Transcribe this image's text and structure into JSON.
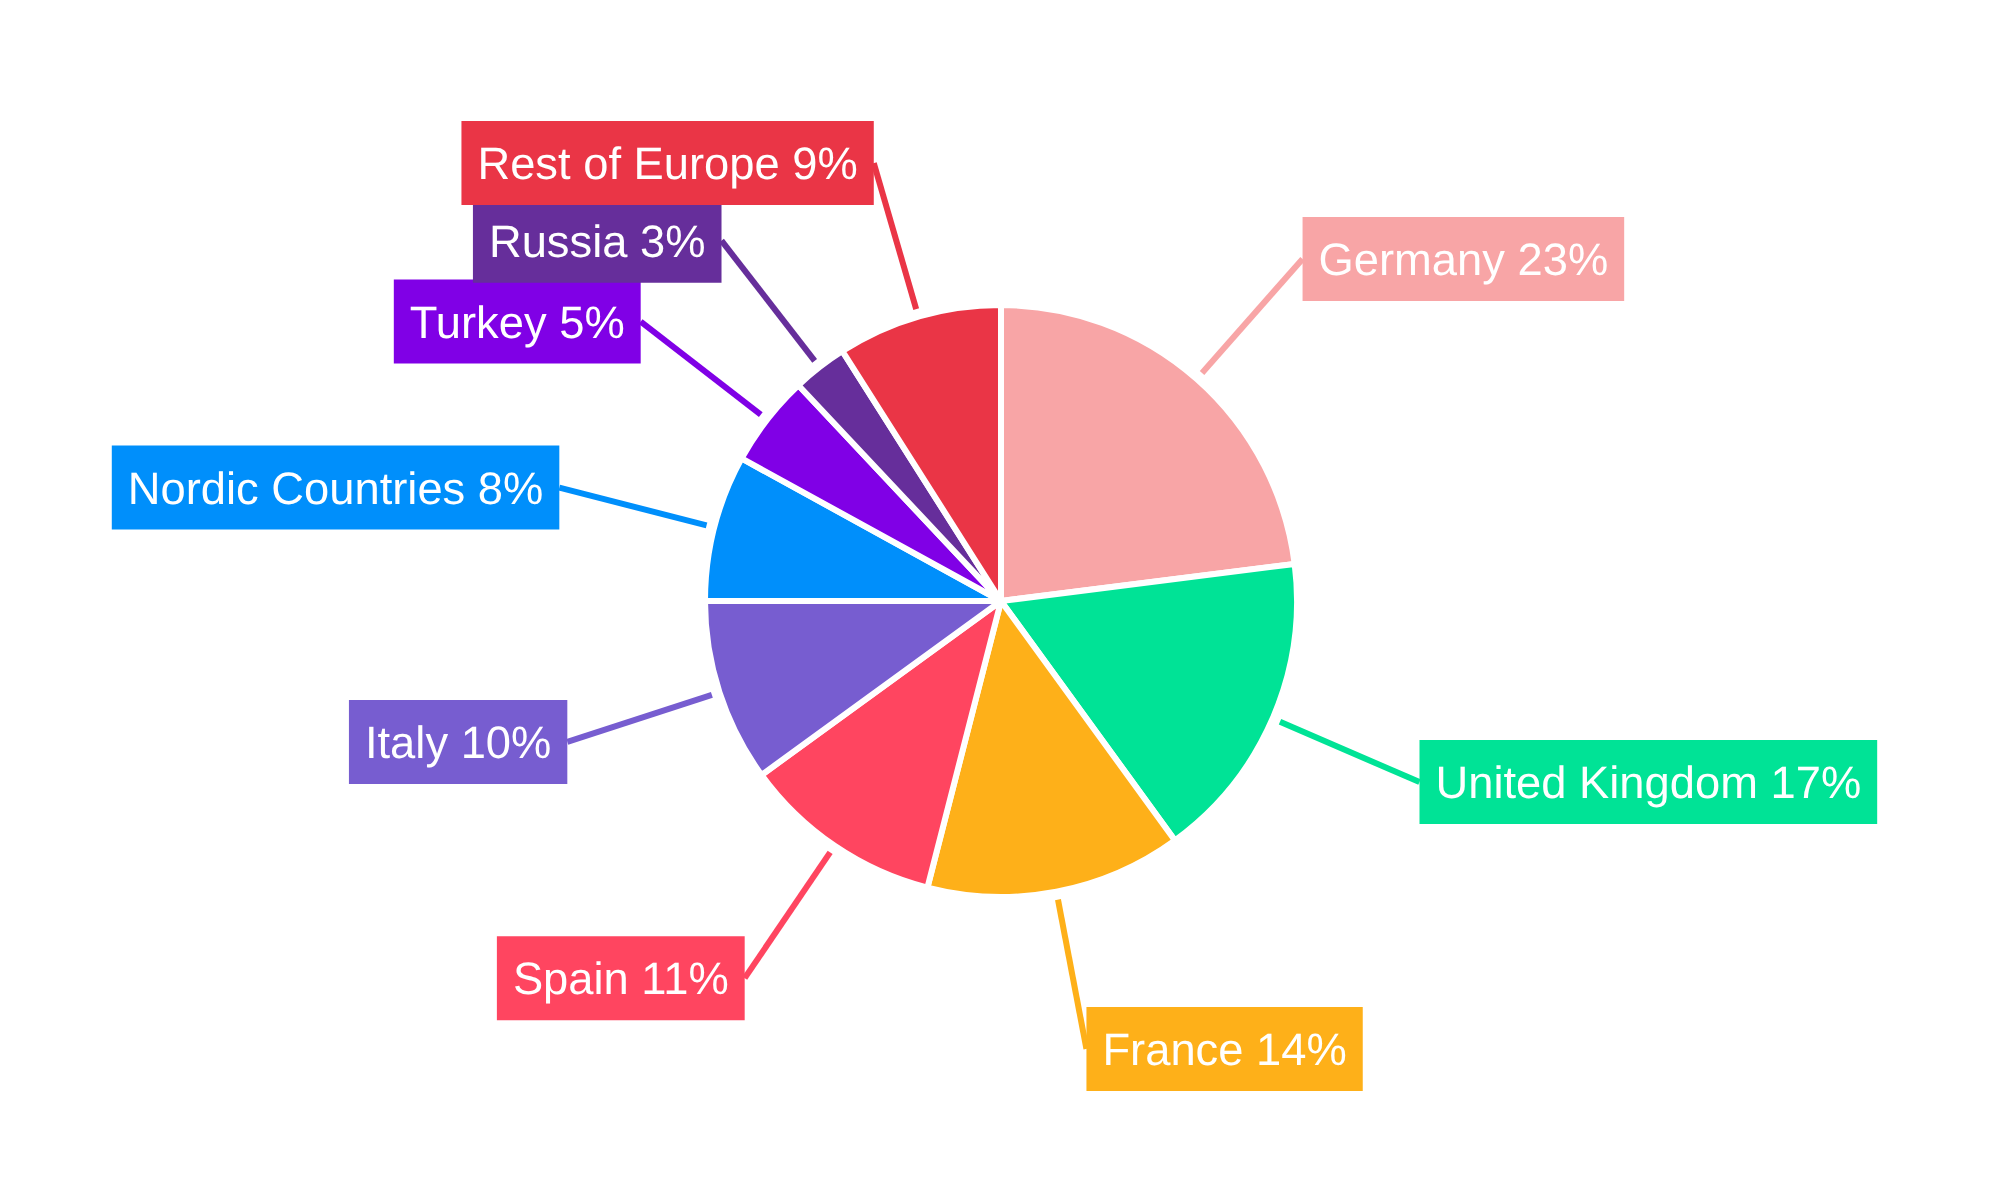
{
  "chart_data": {
    "type": "pie",
    "categories": [
      "Germany",
      "United Kingdom",
      "France",
      "Spain",
      "Italy",
      "Nordic Countries",
      "Turkey",
      "Russia",
      "Rest of Europe"
    ],
    "values": [
      23,
      17,
      14,
      11,
      10,
      8,
      5,
      3,
      9
    ],
    "value_labels": [
      "23%",
      "17%",
      "14%",
      "11%",
      "10%",
      "8%",
      "5%",
      "3%",
      "9%"
    ],
    "colors": [
      "#f8a5a6",
      "#00e396",
      "#feb019",
      "#ff4560",
      "#775dd0",
      "#008ffb",
      "#8000e6",
      "#662e9b",
      "#ea3546"
    ]
  }
}
